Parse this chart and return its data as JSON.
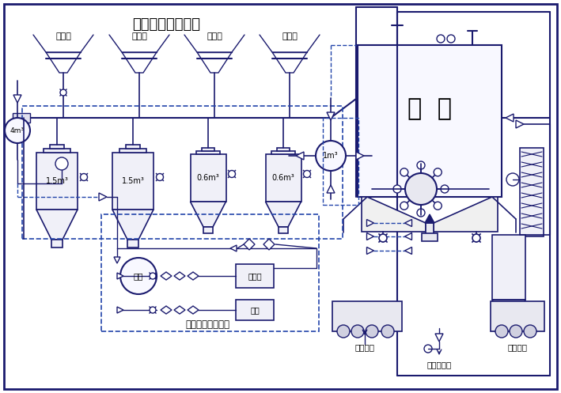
{
  "title": "浓相气力输送系统",
  "bg_color": "#ffffff",
  "line_color": "#1a1a6e",
  "dashed_color": "#2244aa",
  "field_labels": [
    "一电场",
    "二电场",
    "三电场",
    "四电场"
  ],
  "tank_labels": [
    "1.5m³",
    "1.5m³",
    "0.6m³",
    "0.6m³"
  ],
  "huiku_label": "灰  库",
  "bottom_labels": [
    "湿灰装车",
    "压力水进口",
    "干灰装车"
  ],
  "sub_system_label": "气力输送供气系统",
  "main_tank_label": "总罐",
  "compressor_label": "空压机",
  "backup_label": "备用",
  "small_tank_label": "4m³",
  "medium_tank_label": "1m³",
  "figsize": [
    7.09,
    4.97
  ],
  "dpi": 100,
  "xlim": [
    0,
    709
  ],
  "ylim": [
    0,
    497
  ]
}
